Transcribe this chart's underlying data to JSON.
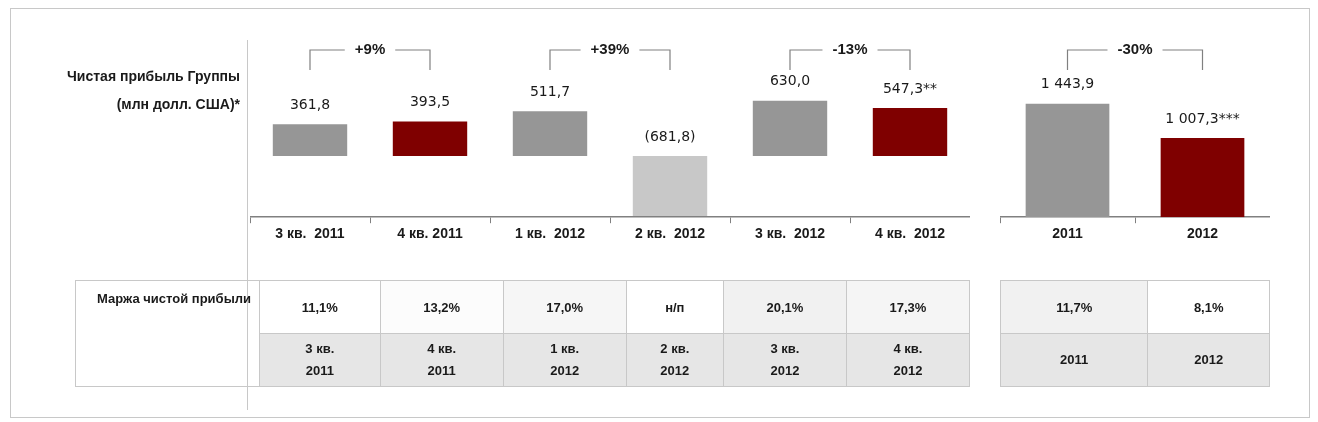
{
  "chart_data": [
    {
      "type": "bar",
      "ylabel": "Чистая прибыль Группы (млн долл. США)*",
      "categories": [
        "3 кв.  2011",
        "4 кв. 2011",
        "1 кв.  2012",
        "2 кв.  2012",
        "3 кв.  2012",
        "4 кв.  2012"
      ],
      "values": [
        361.8,
        393.5,
        511.7,
        -681.8,
        630.0,
        547.3
      ],
      "colors": [
        "#969696",
        "#7f0000",
        "#969696",
        "#c8c8c8",
        "#969696",
        "#7f0000"
      ],
      "value_labels": [
        "361,8",
        "393,5",
        "511,7",
        "(681,8)",
        "630,0",
        "547,3**"
      ],
      "annotations": [
        "+9%",
        "+39%",
        "-13%"
      ]
    },
    {
      "type": "bar",
      "categories": [
        "2011",
        "2012"
      ],
      "values": [
        1443.9,
        1007.3
      ],
      "colors": [
        "#969696",
        "#7f0000"
      ],
      "value_labels": [
        "1 443,9",
        "1 007,3***"
      ],
      "annotations": [
        "-30%"
      ]
    },
    {
      "type": "heatmap",
      "categories": [
        "3 кв.\n2011",
        "4 кв.\n2011",
        "1 кв.\n2012",
        "2 кв.\n2012",
        "3 кв.\n2012",
        "4 кв.\n2012"
      ],
      "y_categories": [
        "Маржа чистой прибыли"
      ],
      "cells": [
        [
          11.1,
          13.2,
          17.0,
          null,
          20.1,
          17.3
        ]
      ],
      "cell_labels": [
        [
          "11,1%",
          "13,2%",
          "17,0%",
          "н/п",
          "20,1%",
          "17,3%"
        ]
      ]
    },
    {
      "type": "heatmap",
      "categories": [
        "2011",
        "2012"
      ],
      "y_categories": [
        null
      ],
      "cells": [
        [
          11.7,
          8.1
        ]
      ],
      "cell_labels": [
        [
          "11,7%",
          "8,1%"
        ]
      ]
    }
  ]
}
